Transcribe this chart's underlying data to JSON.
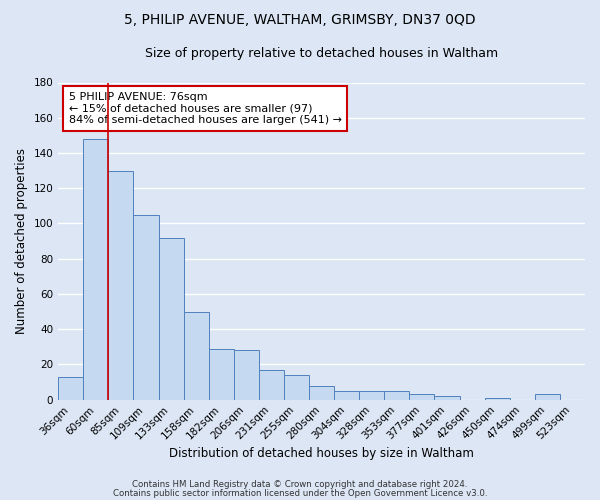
{
  "title": "5, PHILIP AVENUE, WALTHAM, GRIMSBY, DN37 0QD",
  "subtitle": "Size of property relative to detached houses in Waltham",
  "xlabel": "Distribution of detached houses by size in Waltham",
  "ylabel": "Number of detached properties",
  "categories": [
    "36sqm",
    "60sqm",
    "85sqm",
    "109sqm",
    "133sqm",
    "158sqm",
    "182sqm",
    "206sqm",
    "231sqm",
    "255sqm",
    "280sqm",
    "304sqm",
    "328sqm",
    "353sqm",
    "377sqm",
    "401sqm",
    "426sqm",
    "450sqm",
    "474sqm",
    "499sqm",
    "523sqm"
  ],
  "values": [
    13,
    148,
    130,
    105,
    92,
    50,
    29,
    28,
    17,
    14,
    8,
    5,
    5,
    5,
    3,
    2,
    0,
    1,
    0,
    3,
    0
  ],
  "bar_color": "#c5d9f1",
  "bar_edge_color": "#4f81bd",
  "vline_color": "#cc0000",
  "ylim": [
    0,
    180
  ],
  "yticks": [
    0,
    20,
    40,
    60,
    80,
    100,
    120,
    140,
    160,
    180
  ],
  "annotation_text": "5 PHILIP AVENUE: 76sqm\n← 15% of detached houses are smaller (97)\n84% of semi-detached houses are larger (541) →",
  "annotation_box_color": "#ffffff",
  "annotation_box_edge": "#cc0000",
  "footer1": "Contains HM Land Registry data © Crown copyright and database right 2024.",
  "footer2": "Contains public sector information licensed under the Open Government Licence v3.0.",
  "bg_color": "#dce6f5",
  "grid_color": "#ffffff",
  "title_fontsize": 10,
  "subtitle_fontsize": 9,
  "axis_label_fontsize": 8.5,
  "tick_fontsize": 7.5
}
